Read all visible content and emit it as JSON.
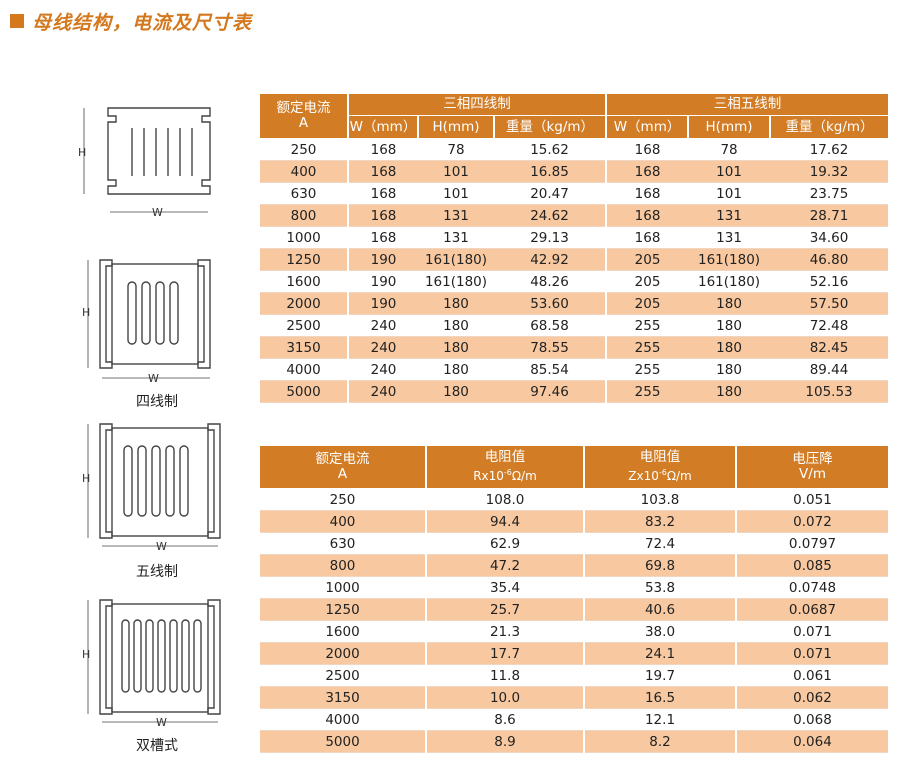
{
  "title": "母线结构，电流及尺寸表",
  "figures": {
    "labels": {
      "w": "W",
      "h": "H"
    },
    "captions": [
      "四线制",
      "五线制",
      "双槽式"
    ]
  },
  "table1": {
    "header": {
      "current": "额定电流",
      "current_unit": "A",
      "group1": "三相四线制",
      "group2": "三相五线制",
      "w": "W（mm）",
      "h": "H(mm)",
      "weight": "重量（kg/m）"
    },
    "rows": [
      [
        "250",
        "168",
        "78",
        "15.62",
        "168",
        "78",
        "17.62"
      ],
      [
        "400",
        "168",
        "101",
        "16.85",
        "168",
        "101",
        "19.32"
      ],
      [
        "630",
        "168",
        "101",
        "20.47",
        "168",
        "101",
        "23.75"
      ],
      [
        "800",
        "168",
        "131",
        "24.62",
        "168",
        "131",
        "28.71"
      ],
      [
        "1000",
        "168",
        "131",
        "29.13",
        "168",
        "131",
        "34.60"
      ],
      [
        "1250",
        "190",
        "161(180)",
        "42.92",
        "205",
        "161(180)",
        "46.80"
      ],
      [
        "1600",
        "190",
        "161(180)",
        "48.26",
        "205",
        "161(180)",
        "52.16"
      ],
      [
        "2000",
        "190",
        "180",
        "53.60",
        "205",
        "180",
        "57.50"
      ],
      [
        "2500",
        "240",
        "180",
        "68.58",
        "255",
        "180",
        "72.48"
      ],
      [
        "3150",
        "240",
        "180",
        "78.55",
        "255",
        "180",
        "82.45"
      ],
      [
        "4000",
        "240",
        "180",
        "85.54",
        "255",
        "180",
        "89.44"
      ],
      [
        "5000",
        "240",
        "180",
        "97.46",
        "255",
        "180",
        "105.53"
      ]
    ]
  },
  "table2": {
    "header": {
      "current": "额定电流",
      "current_unit": "A",
      "r_title": "电阻值",
      "r_unit_pre": "Rx10",
      "r_unit_sup": "-6",
      "r_unit_post": "Ω/m",
      "z_title": "电阻值",
      "z_unit_pre": "Zx10",
      "z_unit_sup": "-6",
      "z_unit_post": "Ω/m",
      "v_title": "电压降",
      "v_unit": "V/m"
    },
    "rows": [
      [
        "250",
        "108.0",
        "103.8",
        "0.051"
      ],
      [
        "400",
        "94.4",
        "83.2",
        "0.072"
      ],
      [
        "630",
        "62.9",
        "72.4",
        "0.0797"
      ],
      [
        "800",
        "47.2",
        "69.8",
        "0.085"
      ],
      [
        "1000",
        "35.4",
        "53.8",
        "0.0748"
      ],
      [
        "1250",
        "25.7",
        "40.6",
        "0.0687"
      ],
      [
        "1600",
        "21.3",
        "38.0",
        "0.071"
      ],
      [
        "2000",
        "17.7",
        "24.1",
        "0.071"
      ],
      [
        "2500",
        "11.8",
        "19.7",
        "0.061"
      ],
      [
        "3150",
        "10.0",
        "16.5",
        "0.062"
      ],
      [
        "4000",
        "8.6",
        "12.1",
        "0.068"
      ],
      [
        "5000",
        "8.9",
        "8.2",
        "0.064"
      ]
    ]
  }
}
